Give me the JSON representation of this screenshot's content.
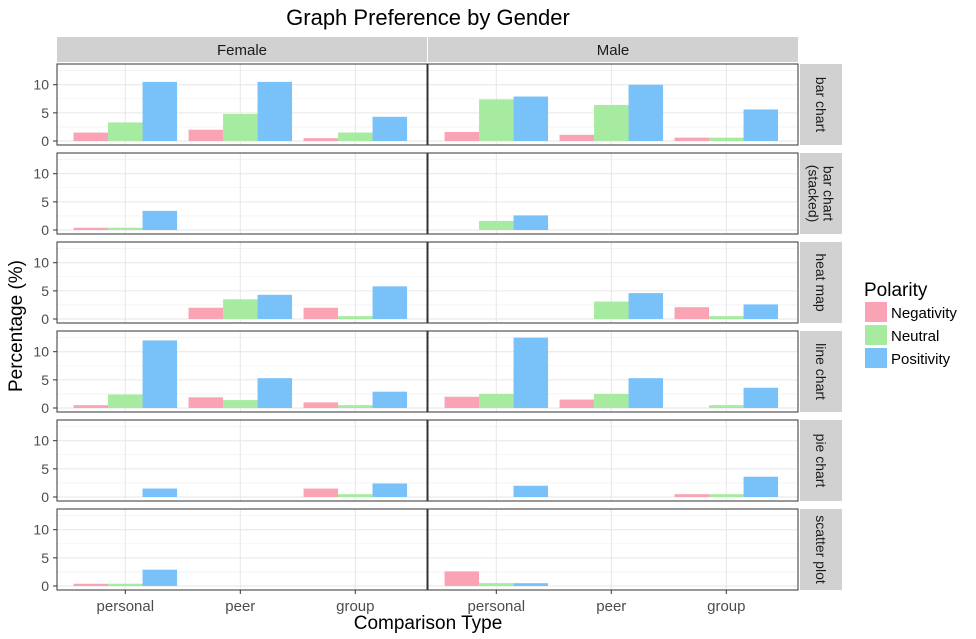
{
  "chart_data": {
    "type": "bar",
    "title": "Graph Preference by Gender",
    "xlabel": "Comparison Type",
    "ylabel": "Percentage (%)",
    "ylim": [
      0,
      13.5
    ],
    "yticks": [
      0,
      5,
      10
    ],
    "categories": [
      "personal",
      "peer",
      "group"
    ],
    "columns": [
      "Female",
      "Male"
    ],
    "rows": [
      {
        "key": "bar",
        "label": "bar chart",
        "lines": [
          "bar chart"
        ]
      },
      {
        "key": "stacked",
        "label": "bar chart (stacked)",
        "lines": [
          "bar chart",
          "(stacked)"
        ]
      },
      {
        "key": "heat",
        "label": "heat map",
        "lines": [
          "heat map"
        ]
      },
      {
        "key": "line",
        "label": "line chart",
        "lines": [
          "line chart"
        ]
      },
      {
        "key": "pie",
        "label": "pie chart",
        "lines": [
          "pie chart"
        ]
      },
      {
        "key": "scatter",
        "label": "scatter plot",
        "lines": [
          "scatter plot"
        ]
      }
    ],
    "legend": {
      "title": "Polarity",
      "position": "right",
      "entries": [
        {
          "name": "Negativity",
          "color": "#F9A3B5"
        },
        {
          "name": "Neutral",
          "color": "#A6EBA0"
        },
        {
          "name": "Positivity",
          "color": "#79C1F9"
        }
      ]
    },
    "series": [
      {
        "name": "Negativity",
        "color": "#F9A3B5"
      },
      {
        "name": "Neutral",
        "color": "#A6EBA0"
      },
      {
        "name": "Positivity",
        "color": "#79C1F9"
      }
    ],
    "values": {
      "Female": {
        "bar": {
          "personal": [
            1.5,
            3.3,
            10.5
          ],
          "peer": [
            2.0,
            4.8,
            10.5
          ],
          "group": [
            0.5,
            1.5,
            4.3
          ]
        },
        "stacked": {
          "personal": [
            0.4,
            0.4,
            3.4
          ],
          "peer": [
            0,
            0,
            0
          ],
          "group": [
            0,
            0,
            0
          ]
        },
        "heat": {
          "personal": [
            0,
            0,
            0
          ],
          "peer": [
            2.0,
            3.5,
            4.3
          ],
          "group": [
            2.0,
            0.5,
            5.8
          ]
        },
        "line": {
          "personal": [
            0.5,
            2.4,
            12.0
          ],
          "peer": [
            1.9,
            1.4,
            5.3
          ],
          "group": [
            1.0,
            0.5,
            2.9
          ]
        },
        "pie": {
          "personal": [
            0,
            0,
            1.5
          ],
          "peer": [
            0,
            0,
            0
          ],
          "group": [
            1.5,
            0.5,
            2.4
          ]
        },
        "scatter": {
          "personal": [
            0.4,
            0.4,
            2.9
          ],
          "peer": [
            0,
            0,
            0
          ],
          "group": [
            0,
            0,
            0
          ]
        }
      },
      "Male": {
        "bar": {
          "personal": [
            1.6,
            7.4,
            7.9
          ],
          "peer": [
            1.1,
            6.4,
            10.0
          ],
          "group": [
            0.6,
            0.6,
            5.6
          ]
        },
        "stacked": {
          "personal": [
            0,
            1.6,
            2.6
          ],
          "peer": [
            0,
            0,
            0
          ],
          "group": [
            0,
            0,
            0
          ]
        },
        "heat": {
          "personal": [
            0,
            0,
            0
          ],
          "peer": [
            0,
            3.1,
            4.6
          ],
          "group": [
            2.1,
            0.5,
            2.6
          ]
        },
        "line": {
          "personal": [
            2.0,
            2.5,
            12.5
          ],
          "peer": [
            1.5,
            2.5,
            5.3
          ],
          "group": [
            0,
            0.5,
            3.6
          ]
        },
        "pie": {
          "personal": [
            0,
            0,
            2.0
          ],
          "peer": [
            0,
            0,
            0
          ],
          "group": [
            0.5,
            0.5,
            3.6
          ]
        },
        "scatter": {
          "personal": [
            2.6,
            0.5,
            0.5
          ],
          "peer": [
            0,
            0,
            0
          ],
          "group": [
            0,
            0,
            0
          ]
        }
      }
    }
  }
}
